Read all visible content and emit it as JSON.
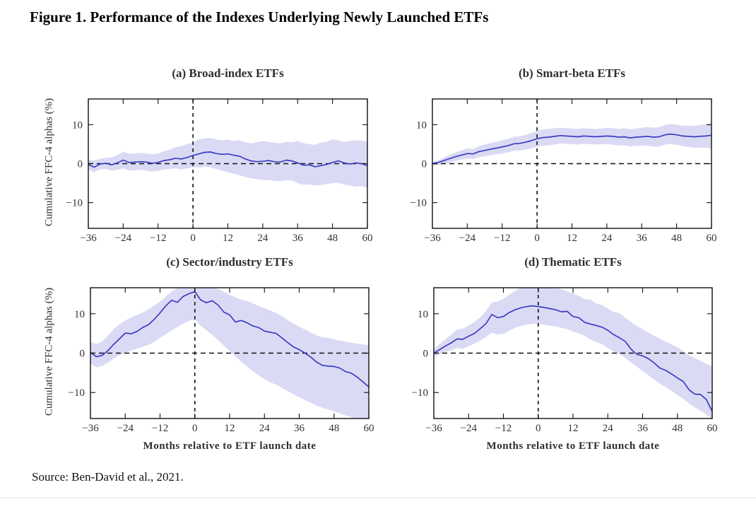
{
  "figure": {
    "title": "Figure 1. Performance of the Indexes Underlying Newly Launched ETFs",
    "source": "Source: Ben-David et al., 2021.",
    "y_axis_label": "Cumulative FFC-4 alphas (%)",
    "x_axis_label": "Months relative to ETF launch date"
  },
  "colors": {
    "line": "#3d3dc4",
    "band": "#dadaf5",
    "axis": "#111111",
    "dash": "#111111",
    "tick_text": "#333333"
  },
  "chart_data": [
    {
      "type": "line",
      "title": "(a) Broad-index ETFs",
      "xlabel": "",
      "ylabel": "Cumulative FFC-4 alphas (%)",
      "xlim": [
        -36,
        60
      ],
      "ylim": [
        -16.6,
        16.6
      ],
      "xticks": [
        -36,
        -24,
        -12,
        0,
        12,
        24,
        36,
        48,
        60
      ],
      "xtick_labels": [
        "−36",
        "−24",
        "−12",
        "0",
        "12",
        "24",
        "36",
        "48",
        "60"
      ],
      "yticks": [
        -10,
        0,
        10
      ],
      "ytick_labels": [
        "−10",
        "0",
        "10"
      ],
      "reference_lines": {
        "h": 0,
        "v": 0
      },
      "x": [
        -36,
        -34,
        -32,
        -30,
        -28,
        -26,
        -24,
        -22,
        -20,
        -18,
        -16,
        -14,
        -12,
        -10,
        -8,
        -6,
        -4,
        -2,
        0,
        2,
        4,
        6,
        8,
        10,
        12,
        14,
        16,
        18,
        20,
        22,
        24,
        26,
        28,
        30,
        32,
        34,
        36,
        38,
        40,
        42,
        44,
        46,
        48,
        50,
        52,
        54,
        56,
        58,
        60
      ],
      "series": [
        {
          "name": "mean cumulative alpha",
          "values": [
            -0.2,
            -0.9,
            -0.1,
            0.1,
            -0.3,
            0.2,
            0.9,
            0.3,
            0.4,
            0.5,
            0.4,
            0.1,
            0.3,
            0.8,
            1.0,
            1.4,
            1.2,
            1.6,
            2.1,
            2.5,
            2.9,
            3.0,
            2.6,
            2.4,
            2.5,
            2.2,
            1.9,
            1.2,
            0.7,
            0.5,
            0.6,
            0.8,
            0.5,
            0.4,
            0.9,
            0.7,
            0.2,
            -0.4,
            -0.3,
            -0.8,
            -0.5,
            -0.2,
            0.3,
            0.7,
            0.2,
            -0.1,
            0.2,
            0.0,
            -0.5
          ]
        },
        {
          "name": "upper confidence band",
          "values": [
            1.0,
            0.8,
            1.2,
            1.5,
            1.6,
            2.2,
            3.0,
            2.6,
            2.6,
            2.8,
            2.6,
            2.4,
            2.6,
            3.2,
            3.6,
            4.2,
            4.5,
            5.0,
            5.5,
            6.2,
            6.5,
            6.6,
            6.2,
            6.0,
            6.2,
            5.8,
            6.0,
            5.5,
            5.2,
            5.5,
            5.8,
            5.6,
            5.4,
            5.2,
            5.6,
            5.5,
            5.8,
            5.2,
            5.0,
            4.8,
            5.4,
            5.6,
            6.2,
            6.0,
            5.6,
            5.8,
            6.0,
            5.9,
            5.7
          ]
        },
        {
          "name": "lower confidence band",
          "values": [
            -1.4,
            -2.2,
            -1.5,
            -1.3,
            -1.8,
            -1.6,
            -1.2,
            -1.8,
            -1.7,
            -1.6,
            -1.8,
            -2.0,
            -1.9,
            -1.5,
            -1.4,
            -1.2,
            -1.5,
            -1.2,
            -0.9,
            -1.0,
            -0.8,
            -0.9,
            -1.4,
            -1.8,
            -2.2,
            -2.6,
            -3.0,
            -3.4,
            -3.8,
            -4.0,
            -4.2,
            -4.2,
            -4.4,
            -4.5,
            -4.2,
            -4.3,
            -5.0,
            -5.4,
            -5.3,
            -5.6,
            -5.5,
            -5.2,
            -5.0,
            -4.9,
            -5.4,
            -5.6,
            -5.9,
            -5.8,
            -6.2
          ]
        }
      ]
    },
    {
      "type": "line",
      "title": "(b) Smart-beta ETFs",
      "xlabel": "",
      "ylabel": "",
      "xlim": [
        -36,
        60
      ],
      "ylim": [
        -16.6,
        16.6
      ],
      "xticks": [
        -36,
        -24,
        -12,
        0,
        12,
        24,
        36,
        48,
        60
      ],
      "xtick_labels": [
        "−36",
        "−24",
        "−12",
        "0",
        "12",
        "24",
        "36",
        "48",
        "60"
      ],
      "yticks": [
        -10,
        0,
        10
      ],
      "ytick_labels": [
        "−10",
        "0",
        "10"
      ],
      "reference_lines": {
        "h": 0,
        "v": 0
      },
      "x": [
        -36,
        -34,
        -32,
        -30,
        -28,
        -26,
        -24,
        -22,
        -20,
        -18,
        -16,
        -14,
        -12,
        -10,
        -8,
        -6,
        -4,
        -2,
        0,
        2,
        4,
        6,
        8,
        10,
        12,
        14,
        16,
        18,
        20,
        22,
        24,
        26,
        28,
        30,
        32,
        34,
        36,
        38,
        40,
        42,
        44,
        46,
        48,
        50,
        52,
        54,
        56,
        58,
        60
      ],
      "series": [
        {
          "name": "mean cumulative alpha",
          "values": [
            0.0,
            0.3,
            0.8,
            1.3,
            1.8,
            2.2,
            2.6,
            2.5,
            3.1,
            3.4,
            3.7,
            4.0,
            4.3,
            4.6,
            5.1,
            5.2,
            5.5,
            5.9,
            6.4,
            6.7,
            6.8,
            7.0,
            7.2,
            7.1,
            7.0,
            6.9,
            7.1,
            7.0,
            6.9,
            7.0,
            7.1,
            7.0,
            6.8,
            6.9,
            6.6,
            6.8,
            6.9,
            7.0,
            6.8,
            6.9,
            7.4,
            7.6,
            7.4,
            7.1,
            7.0,
            6.9,
            7.0,
            7.1,
            7.3
          ]
        },
        {
          "name": "upper confidence band",
          "values": [
            0.4,
            0.9,
            1.6,
            2.3,
            2.9,
            3.4,
            3.9,
            3.8,
            4.5,
            4.9,
            5.3,
            5.6,
            6.0,
            6.3,
            6.9,
            7.0,
            7.4,
            7.9,
            8.4,
            8.8,
            8.9,
            9.1,
            9.2,
            9.1,
            9.0,
            8.9,
            9.1,
            9.0,
            8.9,
            9.0,
            9.2,
            9.1,
            8.9,
            9.1,
            8.8,
            9.0,
            9.2,
            9.4,
            9.2,
            9.4,
            9.9,
            10.2,
            10.0,
            9.7,
            9.7,
            9.7,
            9.9,
            10.1,
            10.4
          ]
        },
        {
          "name": "lower confidence band",
          "values": [
            -0.4,
            -0.3,
            0.0,
            0.3,
            0.7,
            1.0,
            1.3,
            1.2,
            1.7,
            1.9,
            2.1,
            2.4,
            2.6,
            2.9,
            3.3,
            3.4,
            3.6,
            3.9,
            4.4,
            4.6,
            4.7,
            4.9,
            5.2,
            5.1,
            5.0,
            4.9,
            5.1,
            5.0,
            4.9,
            5.0,
            5.0,
            4.9,
            4.7,
            4.7,
            4.4,
            4.6,
            4.6,
            4.6,
            4.4,
            4.4,
            4.9,
            5.0,
            4.8,
            4.5,
            4.3,
            4.1,
            4.1,
            4.1,
            3.8
          ]
        }
      ]
    },
    {
      "type": "line",
      "title": "(c) Sector/industry ETFs",
      "xlabel": "Months relative to ETF launch date",
      "ylabel": "Cumulative FFC-4 alphas (%)",
      "xlim": [
        -36,
        60
      ],
      "ylim": [
        -16.6,
        16.6
      ],
      "xticks": [
        -36,
        -24,
        -12,
        0,
        12,
        24,
        36,
        48,
        60
      ],
      "xtick_labels": [
        "−36",
        "−24",
        "−12",
        "0",
        "12",
        "24",
        "36",
        "48",
        "60"
      ],
      "yticks": [
        -10,
        0,
        10
      ],
      "ytick_labels": [
        "−10",
        "0",
        "10"
      ],
      "reference_lines": {
        "h": 0,
        "v": 0
      },
      "x": [
        -36,
        -34,
        -32,
        -30,
        -28,
        -26,
        -24,
        -22,
        -20,
        -18,
        -16,
        -14,
        -12,
        -10,
        -8,
        -6,
        -4,
        -2,
        0,
        2,
        4,
        6,
        8,
        10,
        12,
        14,
        16,
        18,
        20,
        22,
        24,
        26,
        28,
        30,
        32,
        34,
        36,
        38,
        40,
        42,
        44,
        46,
        48,
        50,
        52,
        54,
        56,
        58,
        60
      ],
      "series": [
        {
          "name": "mean cumulative alpha",
          "values": [
            0.2,
            -0.9,
            -0.6,
            0.6,
            2.2,
            3.6,
            5.1,
            4.9,
            5.5,
            6.5,
            7.2,
            8.6,
            10.2,
            12.0,
            13.4,
            12.9,
            14.4,
            15.1,
            15.6,
            13.5,
            12.8,
            13.3,
            12.2,
            10.4,
            9.7,
            7.9,
            8.3,
            7.7,
            6.9,
            6.5,
            5.6,
            5.3,
            5.0,
            3.9,
            2.7,
            1.6,
            0.9,
            0.0,
            -1.0,
            -2.3,
            -3.1,
            -3.3,
            -3.4,
            -3.8,
            -4.7,
            -5.1,
            -6.1,
            -7.3,
            -8.6
          ]
        },
        {
          "name": "upper confidence band",
          "values": [
            2.8,
            2.3,
            2.9,
            4.4,
            6.1,
            7.3,
            8.3,
            9.0,
            9.7,
            10.3,
            11.1,
            12.1,
            13.1,
            14.3,
            15.6,
            16.6,
            17.3,
            17.6,
            17.8,
            17.5,
            17.2,
            16.8,
            16.3,
            15.6,
            14.8,
            14.2,
            13.6,
            13.2,
            12.6,
            12.0,
            11.4,
            10.8,
            10.2,
            9.4,
            8.4,
            7.5,
            6.7,
            6.0,
            5.2,
            4.5,
            4.0,
            3.9,
            3.5,
            3.2,
            2.9,
            2.6,
            2.4,
            2.2,
            2.0
          ]
        },
        {
          "name": "lower confidence band",
          "values": [
            -2.6,
            -3.6,
            -3.3,
            -2.4,
            -1.4,
            -0.6,
            0.2,
            0.6,
            1.1,
            1.6,
            2.1,
            2.8,
            3.9,
            4.8,
            5.8,
            6.6,
            7.5,
            8.2,
            8.6,
            7.0,
            5.8,
            4.6,
            3.3,
            1.9,
            0.6,
            -0.9,
            -2.2,
            -3.4,
            -4.6,
            -5.6,
            -6.6,
            -7.4,
            -8.0,
            -8.8,
            -9.6,
            -10.4,
            -11.2,
            -11.9,
            -12.6,
            -13.3,
            -13.9,
            -14.3,
            -14.8,
            -15.3,
            -15.8,
            -16.3,
            -16.8,
            -17.2,
            -17.5
          ]
        }
      ]
    },
    {
      "type": "line",
      "title": "(d) Thematic ETFs",
      "xlabel": "Months relative to ETF launch date",
      "ylabel": "",
      "xlim": [
        -36,
        60
      ],
      "ylim": [
        -16.6,
        16.6
      ],
      "xticks": [
        -36,
        -24,
        -12,
        0,
        12,
        24,
        36,
        48,
        60
      ],
      "xtick_labels": [
        "−36",
        "−24",
        "−12",
        "0",
        "12",
        "24",
        "36",
        "48",
        "60"
      ],
      "yticks": [
        -10,
        0,
        10
      ],
      "ytick_labels": [
        "−10",
        "0",
        "10"
      ],
      "reference_lines": {
        "h": 0,
        "v": 0
      },
      "x": [
        -36,
        -34,
        -32,
        -30,
        -28,
        -26,
        -24,
        -22,
        -20,
        -18,
        -16,
        -14,
        -12,
        -10,
        -8,
        -6,
        -4,
        -2,
        0,
        2,
        4,
        6,
        8,
        10,
        12,
        14,
        16,
        18,
        20,
        22,
        24,
        26,
        28,
        30,
        32,
        34,
        36,
        38,
        40,
        42,
        44,
        46,
        48,
        50,
        52,
        54,
        56,
        58,
        60
      ],
      "series": [
        {
          "name": "mean cumulative alpha",
          "values": [
            0.0,
            0.9,
            1.8,
            2.6,
            3.6,
            3.5,
            4.3,
            5.0,
            6.2,
            7.5,
            9.8,
            9.0,
            9.3,
            10.3,
            11.0,
            11.5,
            11.8,
            12.0,
            11.8,
            11.6,
            11.3,
            11.0,
            10.5,
            10.6,
            9.3,
            9.0,
            7.8,
            7.4,
            7.0,
            6.6,
            5.8,
            4.7,
            3.9,
            3.0,
            1.0,
            -0.3,
            -0.7,
            -1.4,
            -2.5,
            -3.8,
            -4.4,
            -5.3,
            -6.3,
            -7.2,
            -9.3,
            -10.4,
            -10.5,
            -11.8,
            -14.8
          ]
        },
        {
          "name": "upper confidence band",
          "values": [
            1.0,
            2.3,
            3.5,
            4.7,
            6.0,
            6.2,
            7.0,
            7.9,
            9.1,
            10.7,
            12.9,
            13.1,
            13.8,
            14.8,
            15.8,
            16.6,
            17.0,
            17.2,
            17.2,
            17.1,
            16.9,
            16.6,
            16.2,
            15.7,
            15.2,
            14.5,
            13.7,
            13.6,
            12.6,
            12.2,
            11.3,
            10.4,
            10.2,
            9.0,
            7.9,
            6.9,
            6.1,
            5.2,
            4.4,
            3.6,
            2.9,
            2.2,
            1.5,
            0.5,
            -0.5,
            -1.3,
            -2.0,
            -2.7,
            -3.3
          ]
        },
        {
          "name": "lower confidence band",
          "values": [
            -0.9,
            -0.3,
            0.3,
            0.7,
            1.3,
            1.1,
            1.8,
            2.4,
            3.2,
            4.1,
            5.2,
            4.7,
            4.9,
            5.7,
            6.4,
            6.9,
            7.2,
            7.5,
            7.4,
            7.2,
            7.0,
            6.8,
            6.4,
            6.1,
            5.5,
            5.0,
            4.4,
            3.5,
            2.8,
            2.3,
            1.3,
            0.4,
            -0.2,
            -1.2,
            -2.4,
            -3.4,
            -4.6,
            -5.6,
            -6.7,
            -7.8,
            -8.6,
            -9.6,
            -10.6,
            -11.6,
            -12.8,
            -13.8,
            -14.6,
            -15.6,
            -16.9
          ]
        }
      ]
    }
  ]
}
